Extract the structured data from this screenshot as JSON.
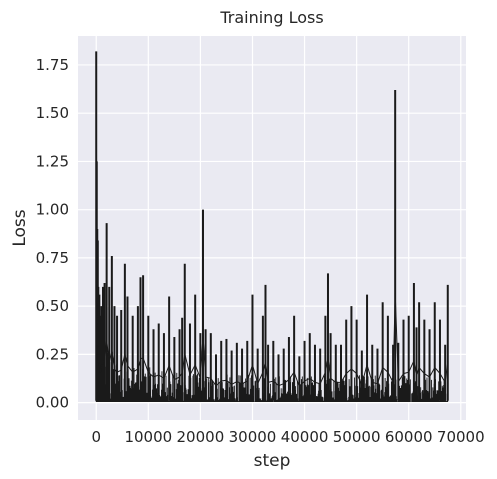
{
  "chart_data": {
    "type": "line",
    "title": "Training Loss",
    "xlabel": "step",
    "ylabel": "Loss",
    "xlim": [
      -3500,
      71000
    ],
    "ylim": [
      -0.09,
      1.9
    ],
    "xticks": [
      0,
      10000,
      20000,
      30000,
      40000,
      50000,
      60000,
      70000
    ],
    "xtick_labels": [
      "0",
      "10000",
      "20000",
      "30000",
      "40000",
      "50000",
      "60000",
      "70000"
    ],
    "yticks": [
      0.0,
      0.25,
      0.5,
      0.75,
      1.0,
      1.25,
      1.5,
      1.75
    ],
    "ytick_labels": [
      "0.00",
      "0.25",
      "0.50",
      "0.75",
      "1.00",
      "1.25",
      "1.50",
      "1.75"
    ],
    "grid": true,
    "background_color": "#eaeaf2",
    "line_color": "#1a1a1a",
    "series": [
      {
        "name": "",
        "x": [
          0,
          100,
          200,
          300,
          400,
          600,
          800,
          1000,
          1300,
          1600,
          2000,
          2500,
          3000,
          3500,
          4000,
          4800,
          5500,
          6000,
          7000,
          8000,
          8500,
          9000,
          10000,
          11000,
          12000,
          13000,
          14000,
          15000,
          16000,
          16500,
          17000,
          18000,
          19000,
          20000,
          20500,
          21000,
          22000,
          23000,
          24000,
          25000,
          26000,
          27000,
          28000,
          29000,
          30000,
          31000,
          32000,
          32500,
          33000,
          34000,
          35000,
          36000,
          37000,
          38000,
          39000,
          40000,
          41000,
          42000,
          43000,
          44000,
          44500,
          45000,
          46000,
          47000,
          48000,
          49000,
          50000,
          51000,
          52000,
          53000,
          54000,
          55000,
          56000,
          57000,
          57400,
          58000,
          59000,
          60000,
          61000,
          61500,
          62000,
          63000,
          64000,
          65000,
          66000,
          67000,
          67500
        ],
        "y": [
          1.82,
          1.25,
          0.9,
          0.84,
          0.6,
          0.56,
          0.45,
          0.5,
          0.6,
          0.62,
          0.93,
          0.6,
          0.76,
          0.5,
          0.45,
          0.48,
          0.72,
          0.55,
          0.45,
          0.5,
          0.65,
          0.66,
          0.45,
          0.38,
          0.41,
          0.36,
          0.55,
          0.34,
          0.38,
          0.44,
          0.72,
          0.41,
          0.56,
          0.36,
          1.0,
          0.38,
          0.36,
          0.25,
          0.32,
          0.33,
          0.27,
          0.31,
          0.28,
          0.32,
          0.56,
          0.28,
          0.45,
          0.61,
          0.3,
          0.32,
          0.25,
          0.28,
          0.34,
          0.45,
          0.24,
          0.32,
          0.36,
          0.3,
          0.28,
          0.45,
          0.67,
          0.36,
          0.3,
          0.3,
          0.43,
          0.5,
          0.43,
          0.27,
          0.56,
          0.3,
          0.28,
          0.52,
          0.45,
          0.3,
          1.62,
          0.31,
          0.43,
          0.45,
          0.62,
          0.39,
          0.52,
          0.43,
          0.38,
          0.52,
          0.43,
          0.3,
          0.61
        ]
      }
    ]
  }
}
